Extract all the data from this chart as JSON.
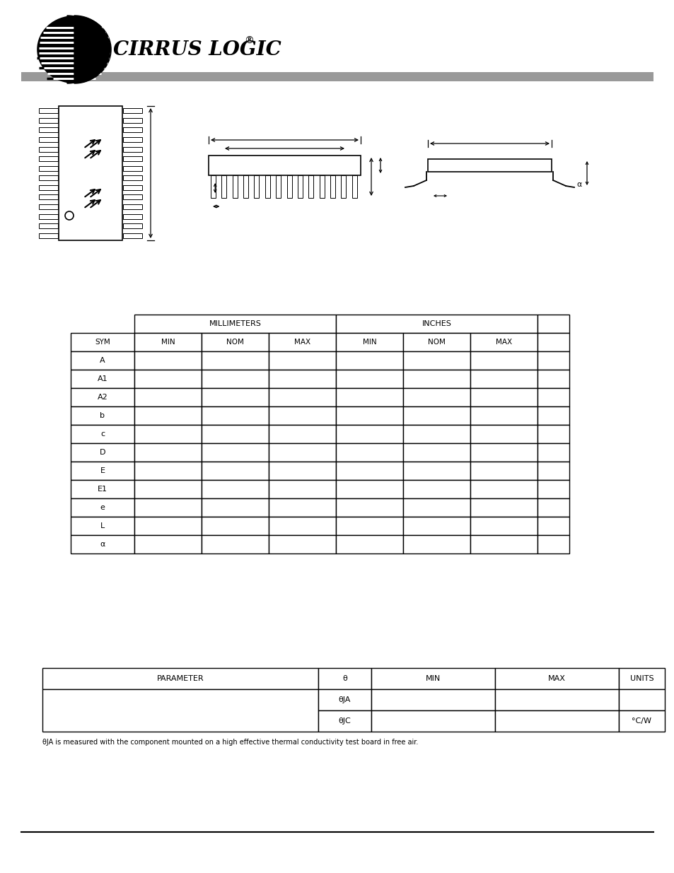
{
  "page_bg": "#ffffff",
  "header_bar_color": "#999999",
  "logo_text": "CIRRUS LOGIC",
  "logo_registered": "®",
  "table1_sym_col_header": "SYM",
  "table1_mm_header": "MILLIMETERS",
  "table1_in_header": "INCHES",
  "table1_sub_headers": [
    "MIN",
    "NOM",
    "MAX",
    "MIN",
    "NOM",
    "MAX"
  ],
  "table1_syms": [
    "A",
    "A1",
    "A2",
    "b",
    "c",
    "D",
    "E",
    "E1",
    "e",
    "L",
    "α"
  ],
  "table2_param_header": "PARAMETER",
  "table2_theta_header": "θ",
  "table2_min_header": "MIN",
  "table2_max_header": "MAX",
  "table2_units_header": "UNITS",
  "table2_theta_ja": "θJA",
  "table2_theta_jc": "θJC",
  "table2_units": "°C/W",
  "table2_note": "θJA is measured with the component mounted on a high effective thermal conductivity test board in free air.",
  "alpha_symbol": "α"
}
